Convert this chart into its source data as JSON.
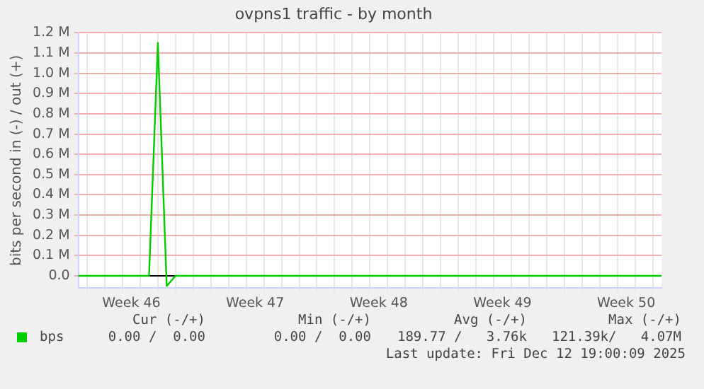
{
  "chart_data": {
    "type": "line",
    "title": "ovpns1 traffic - by month",
    "ylabel": "bits per second in (-) / out (+)",
    "categories": [
      null,
      null,
      null,
      null,
      null,
      null,
      "Week 46",
      null,
      null,
      null,
      null,
      null,
      null,
      null,
      null,
      null,
      null,
      null,
      null,
      null,
      "Week 47",
      null,
      null,
      null,
      null,
      null,
      null,
      null,
      null,
      null,
      null,
      null,
      null,
      null,
      "Week 48",
      null,
      null,
      null,
      null,
      null,
      null,
      null,
      null,
      null,
      null,
      null,
      null,
      null,
      "Week 49",
      null,
      null,
      null,
      null,
      null,
      null,
      null,
      null,
      null,
      null,
      null,
      null,
      null,
      "Week 50",
      null,
      null,
      null,
      null
    ],
    "series": [
      {
        "name": "bps",
        "color": "#00cc00",
        "values": [
          0,
          0,
          0,
          0,
          0,
          0,
          0,
          0,
          0,
          1150000,
          -50000,
          0,
          0,
          0,
          0,
          0,
          0,
          0,
          0,
          0,
          0,
          0,
          0,
          0,
          0,
          0,
          0,
          0,
          0,
          0,
          0,
          0,
          0,
          0,
          0,
          0,
          0,
          0,
          0,
          0,
          0,
          0,
          0,
          0,
          0,
          0,
          0,
          0,
          0,
          0,
          0,
          0,
          0,
          0,
          0,
          0,
          0,
          0,
          0,
          0,
          0,
          0,
          0,
          0,
          0,
          0,
          0
        ]
      }
    ],
    "ylim": [
      -60000,
      1200000
    ],
    "yticks": [
      {
        "value": 0,
        "label": "0.0"
      },
      {
        "value": 100000,
        "label": "0.1 M"
      },
      {
        "value": 200000,
        "label": "0.2 M"
      },
      {
        "value": 300000,
        "label": "0.3 M"
      },
      {
        "value": 400000,
        "label": "0.4 M"
      },
      {
        "value": 500000,
        "label": "0.5 M"
      },
      {
        "value": 600000,
        "label": "0.6 M"
      },
      {
        "value": 700000,
        "label": "0.7 M"
      },
      {
        "value": 800000,
        "label": "0.8 M"
      },
      {
        "value": 900000,
        "label": "0.9 M"
      },
      {
        "value": 1000000,
        "label": "1.0 M"
      },
      {
        "value": 1100000,
        "label": "1.1 M"
      },
      {
        "value": 1200000,
        "label": "1.2 M"
      }
    ],
    "ref_lines": [
      {
        "axis": "y",
        "value": 0,
        "color": "#000000"
      }
    ],
    "grid": true,
    "legend": "bottom",
    "marker": "none",
    "line_style": "solid",
    "annotations": [
      "Cur (-/+)",
      "Min (-/+)",
      "Avg (-/+)",
      "Max (-/+)",
      "0.00 /  0.00",
      "0.00 /  0.00",
      "189.77 /   3.76k",
      "121.39k/   4.07M",
      "Last update: Fri Dec 12 19:00:09 2025"
    ]
  }
}
